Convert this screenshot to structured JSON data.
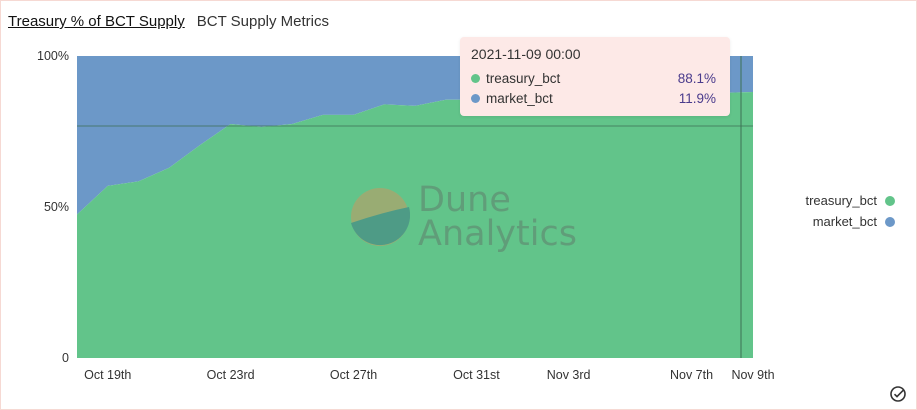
{
  "header": {
    "title": "Treasury % of BCT Supply",
    "subtitle": "BCT Supply Metrics"
  },
  "watermark": {
    "line1": "Dune",
    "line2": "Analytics"
  },
  "tooltip": {
    "time": "2021-11-09 00:00",
    "rows": [
      {
        "name": "treasury_bct",
        "value": "88.1%"
      },
      {
        "name": "market_bct",
        "value": "11.9%"
      }
    ]
  },
  "legend": [
    {
      "name": "treasury_bct"
    },
    {
      "name": "market_bct"
    }
  ],
  "colors": {
    "treasury": "#62c48a",
    "market": "#6c98c8"
  },
  "icons": {
    "corner": "check-circle-icon"
  },
  "chart_data": {
    "type": "area",
    "stacked": "percent",
    "title": "",
    "xlabel": "",
    "ylabel": "",
    "ylim": [
      0,
      100
    ],
    "y_ticks": [
      "0",
      "50%",
      "100%"
    ],
    "x_ticks": [
      "Oct 19th",
      "Oct 23rd",
      "Oct 27th",
      "Oct 31st",
      "Nov 3rd",
      "Nov 7th",
      "Nov 9th"
    ],
    "x": [
      "2021-10-18",
      "2021-10-19",
      "2021-10-20",
      "2021-10-21",
      "2021-10-22",
      "2021-10-23",
      "2021-10-24",
      "2021-10-25",
      "2021-10-26",
      "2021-10-27",
      "2021-10-28",
      "2021-10-29",
      "2021-10-30",
      "2021-10-31",
      "2021-11-01",
      "2021-11-02",
      "2021-11-03",
      "2021-11-04",
      "2021-11-05",
      "2021-11-06",
      "2021-11-07",
      "2021-11-08",
      "2021-11-09"
    ],
    "series": [
      {
        "name": "treasury_bct",
        "values": [
          47.5,
          57,
          58.5,
          63,
          70.5,
          77.5,
          76.5,
          77.5,
          80.5,
          80.5,
          84,
          83.5,
          85.5,
          85.5,
          85.5,
          86,
          86.5,
          86.5,
          87,
          87,
          87.5,
          87.8,
          88.1
        ]
      },
      {
        "name": "market_bct",
        "values": [
          52.5,
          43,
          41.5,
          37,
          29.5,
          22.5,
          23.5,
          22.5,
          19.5,
          19.5,
          16,
          16.5,
          14.5,
          14.5,
          14.5,
          14,
          13.5,
          13.5,
          13,
          13,
          12.5,
          12.2,
          11.9
        ]
      }
    ],
    "hover_index": 22,
    "grid": false,
    "legend_position": "right"
  }
}
